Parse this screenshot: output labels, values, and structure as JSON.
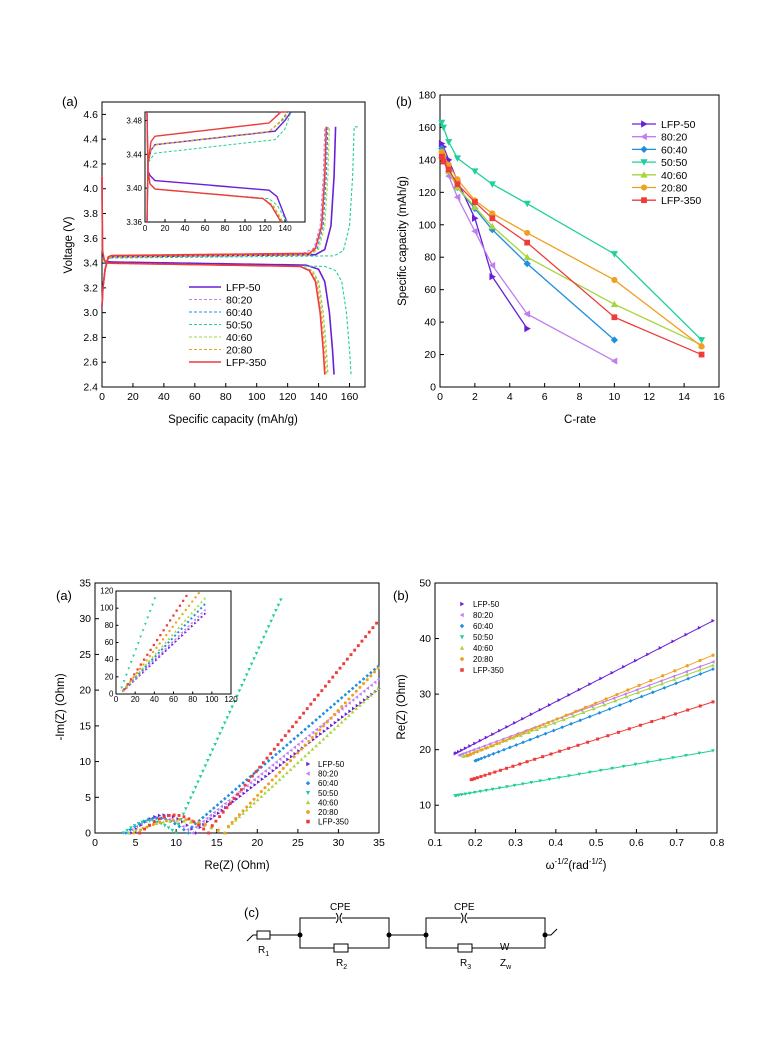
{
  "colors": {
    "LFP-50": "#6a1fd6",
    "80:20": "#c07ef0",
    "60:40": "#1e8fe0",
    "50:50": "#1fcf9c",
    "40:60": "#a6d63c",
    "20:80": "#f0a020",
    "LFP-350": "#ee3b3b"
  },
  "chart_data": [
    {
      "panel": "(a)",
      "type": "line",
      "xlabel": "Specific capacity (mAh/g)",
      "ylabel": "Voltage (V)",
      "xlim": [
        0,
        170
      ],
      "ylim": [
        2.4,
        4.7
      ],
      "xticks": [
        "0",
        "20",
        "40",
        "60",
        "80",
        "100",
        "120",
        "140",
        "160"
      ],
      "yticks": [
        "2.4",
        "2.6",
        "2.8",
        "3.0",
        "3.2",
        "3.4",
        "3.6",
        "3.8",
        "4.0",
        "4.2",
        "4.4",
        "4.6"
      ],
      "legend": "center-bottom",
      "series": [
        {
          "name": "LFP-50",
          "style": "solid",
          "charge_cap": 152,
          "discharge_cap": 150,
          "plateau_c": 3.45,
          "plateau_d": 3.41
        },
        {
          "name": "80:20",
          "style": "dashed",
          "charge_cap": 145,
          "discharge_cap": 144,
          "plateau_c": 3.46,
          "plateau_d": 3.4
        },
        {
          "name": "60:40",
          "style": "dashed",
          "charge_cap": 147,
          "discharge_cap": 146,
          "plateau_c": 3.45,
          "plateau_d": 3.4
        },
        {
          "name": "50:50",
          "style": "dashed",
          "charge_cap": 164,
          "discharge_cap": 161,
          "plateau_c": 3.44,
          "plateau_d": 3.4
        },
        {
          "name": "40:60",
          "style": "dashed",
          "charge_cap": 148,
          "discharge_cap": 146,
          "plateau_c": 3.45,
          "plateau_d": 3.4
        },
        {
          "name": "20:80",
          "style": "dashed",
          "charge_cap": 146,
          "discharge_cap": 145,
          "plateau_c": 3.45,
          "plateau_d": 3.4
        },
        {
          "name": "LFP-350",
          "style": "solid",
          "charge_cap": 146,
          "discharge_cap": 144,
          "plateau_c": 3.46,
          "plateau_d": 3.4
        }
      ],
      "inset": {
        "xlim": [
          0,
          160
        ],
        "ylim": [
          3.36,
          3.49
        ],
        "xticks": [
          "0",
          "20",
          "40",
          "60",
          "80",
          "100",
          "120",
          "140"
        ],
        "yticks": [
          "3.36",
          "3.40",
          "3.44",
          "3.48"
        ]
      }
    },
    {
      "panel": "(b)",
      "type": "line",
      "xlabel": "C-rate",
      "ylabel": "Specific capacity (mAh/g)",
      "xlim": [
        0,
        16
      ],
      "ylim": [
        0,
        180
      ],
      "xticks": [
        "0",
        "2",
        "4",
        "6",
        "8",
        "10",
        "12",
        "14",
        "16"
      ],
      "yticks": [
        "0",
        "20",
        "40",
        "60",
        "80",
        "100",
        "120",
        "140",
        "160",
        "180"
      ],
      "legend": "top-right",
      "series": [
        {
          "name": "LFP-50",
          "marker": "tri-right",
          "x": [
            0.1,
            0.2,
            0.5,
            1,
            2,
            3,
            5
          ],
          "values": [
            150,
            148,
            140,
            127,
            104,
            68,
            36
          ]
        },
        {
          "name": "80:20",
          "marker": "tri-left",
          "x": [
            0.1,
            0.2,
            0.5,
            1,
            2,
            3,
            5,
            10
          ],
          "values": [
            145,
            140,
            130,
            117,
            96,
            75,
            45,
            16
          ]
        },
        {
          "name": "60:40",
          "marker": "diamond",
          "x": [
            0.1,
            0.2,
            0.5,
            1,
            2,
            3,
            5,
            10
          ],
          "values": [
            147,
            142,
            133,
            123,
            110,
            97,
            76,
            29
          ]
        },
        {
          "name": "50:50",
          "marker": "tri-down",
          "x": [
            0.1,
            0.2,
            0.5,
            1,
            2,
            3,
            5,
            10,
            15
          ],
          "values": [
            163,
            160,
            151,
            141,
            133,
            125,
            113,
            82,
            29
          ]
        },
        {
          "name": "40:60",
          "marker": "tri-up",
          "x": [
            0.1,
            0.2,
            0.5,
            1,
            2,
            3,
            5,
            10,
            15
          ],
          "values": [
            143,
            140,
            133,
            123,
            111,
            99,
            80,
            51,
            26
          ]
        },
        {
          "name": "20:80",
          "marker": "circle",
          "x": [
            0.1,
            0.2,
            0.5,
            1,
            2,
            3,
            5,
            10,
            15
          ],
          "values": [
            145,
            143,
            137,
            128,
            115,
            107,
            95,
            66,
            25
          ]
        },
        {
          "name": "LFP-350",
          "marker": "square",
          "x": [
            0.1,
            0.2,
            0.5,
            1,
            2,
            3,
            5,
            10,
            15
          ],
          "values": [
            142,
            139,
            134,
            125,
            114,
            104,
            89,
            43,
            20
          ]
        }
      ]
    },
    {
      "panel": "(a)",
      "type": "scatter",
      "xlabel": "Re(Z) (Ohm)",
      "ylabel": "-Im(Z) (Ohm)",
      "xlim": [
        0,
        35
      ],
      "ylim": [
        0,
        35
      ],
      "xticks": [
        "0",
        "5",
        "10",
        "15",
        "20",
        "25",
        "30",
        "35"
      ],
      "yticks": [
        "0",
        "5",
        "10",
        "15",
        "20",
        "25",
        "30",
        "35"
      ],
      "legend": "bottom-right",
      "series": [
        {
          "name": "LFP-50",
          "marker": "tri-right",
          "start": 4.5,
          "arc_end": 12.5,
          "arc_h": 2.4,
          "slope": 0.88
        },
        {
          "name": "80:20",
          "marker": "tri-left",
          "start": 4.0,
          "arc_end": 12.0,
          "arc_h": 2.0,
          "slope": 0.92
        },
        {
          "name": "60:40",
          "marker": "diamond",
          "start": 3.8,
          "arc_end": 11.5,
          "arc_h": 2.0,
          "slope": 0.98
        },
        {
          "name": "50:50",
          "marker": "tri-down",
          "start": 3.5,
          "arc_end": 10.0,
          "arc_h": 1.6,
          "slope": 2.5
        },
        {
          "name": "40:60",
          "marker": "tri-up",
          "start": 4.2,
          "arc_end": 16.0,
          "arc_h": 1.6,
          "slope": 1.05
        },
        {
          "name": "20:80",
          "marker": "circle",
          "start": 4.8,
          "arc_end": 16.0,
          "arc_h": 1.8,
          "slope": 1.2
        },
        {
          "name": "LFP-350",
          "marker": "square",
          "start": 5.5,
          "arc_end": 14.0,
          "arc_h": 2.4,
          "slope": 1.4
        }
      ],
      "inset": {
        "xlim": [
          0,
          120
        ],
        "ylim": [
          0,
          120
        ],
        "xticks": [
          "0",
          "20",
          "40",
          "60",
          "80",
          "100",
          "120"
        ],
        "yticks": [
          "0",
          "20",
          "40",
          "60",
          "80",
          "100",
          "120"
        ]
      }
    },
    {
      "panel": "(b)",
      "type": "scatter",
      "xlabel": "ω⁻¹ᐟ²(rad⁻¹ᐟ²)",
      "xlabel_main": "ω",
      "xlabel_sup": "-1/2",
      "xlabel_mid": "(rad",
      "xlabel_sup2": "-1/2",
      "xlabel_end": ")",
      "ylabel": "Re(Z) (Ohm)",
      "xlim": [
        0.1,
        0.8
      ],
      "ylim": [
        5,
        50
      ],
      "xticks": [
        "0.1",
        "0.2",
        "0.3",
        "0.4",
        "0.5",
        "0.6",
        "0.7",
        "0.8"
      ],
      "yticks": [
        "10",
        "20",
        "30",
        "40",
        "50"
      ],
      "legend": "top-left",
      "series": [
        {
          "name": "LFP-50",
          "marker": "tri-right",
          "x0": 0.15,
          "y0": 19.3,
          "x1": 0.79,
          "y1": 43.2
        },
        {
          "name": "80:20",
          "marker": "tri-left",
          "x0": 0.16,
          "y0": 19.0,
          "x1": 0.79,
          "y1": 35.8
        },
        {
          "name": "60:40",
          "marker": "diamond",
          "x0": 0.2,
          "y0": 18.0,
          "x1": 0.79,
          "y1": 34.5
        },
        {
          "name": "50:50",
          "marker": "tri-down",
          "x0": 0.15,
          "y0": 11.7,
          "x1": 0.79,
          "y1": 19.8
        },
        {
          "name": "40:60",
          "marker": "tri-up",
          "x0": 0.17,
          "y0": 18.8,
          "x1": 0.79,
          "y1": 35.2
        },
        {
          "name": "20:80",
          "marker": "circle",
          "x0": 0.18,
          "y0": 18.9,
          "x1": 0.79,
          "y1": 37.0
        },
        {
          "name": "LFP-350",
          "marker": "square",
          "x0": 0.19,
          "y0": 14.6,
          "x1": 0.79,
          "y1": 28.6
        }
      ]
    }
  ],
  "circuit": {
    "panel": "(c)",
    "cpe1": "CPE",
    "cpe2": "CPE",
    "r1": "R",
    "r1_sub": "1",
    "r2": "R",
    "r2_sub": "2",
    "r3": "R",
    "r3_sub": "3",
    "w_top": "W",
    "zw": "Z",
    "zw_sub": "w"
  }
}
